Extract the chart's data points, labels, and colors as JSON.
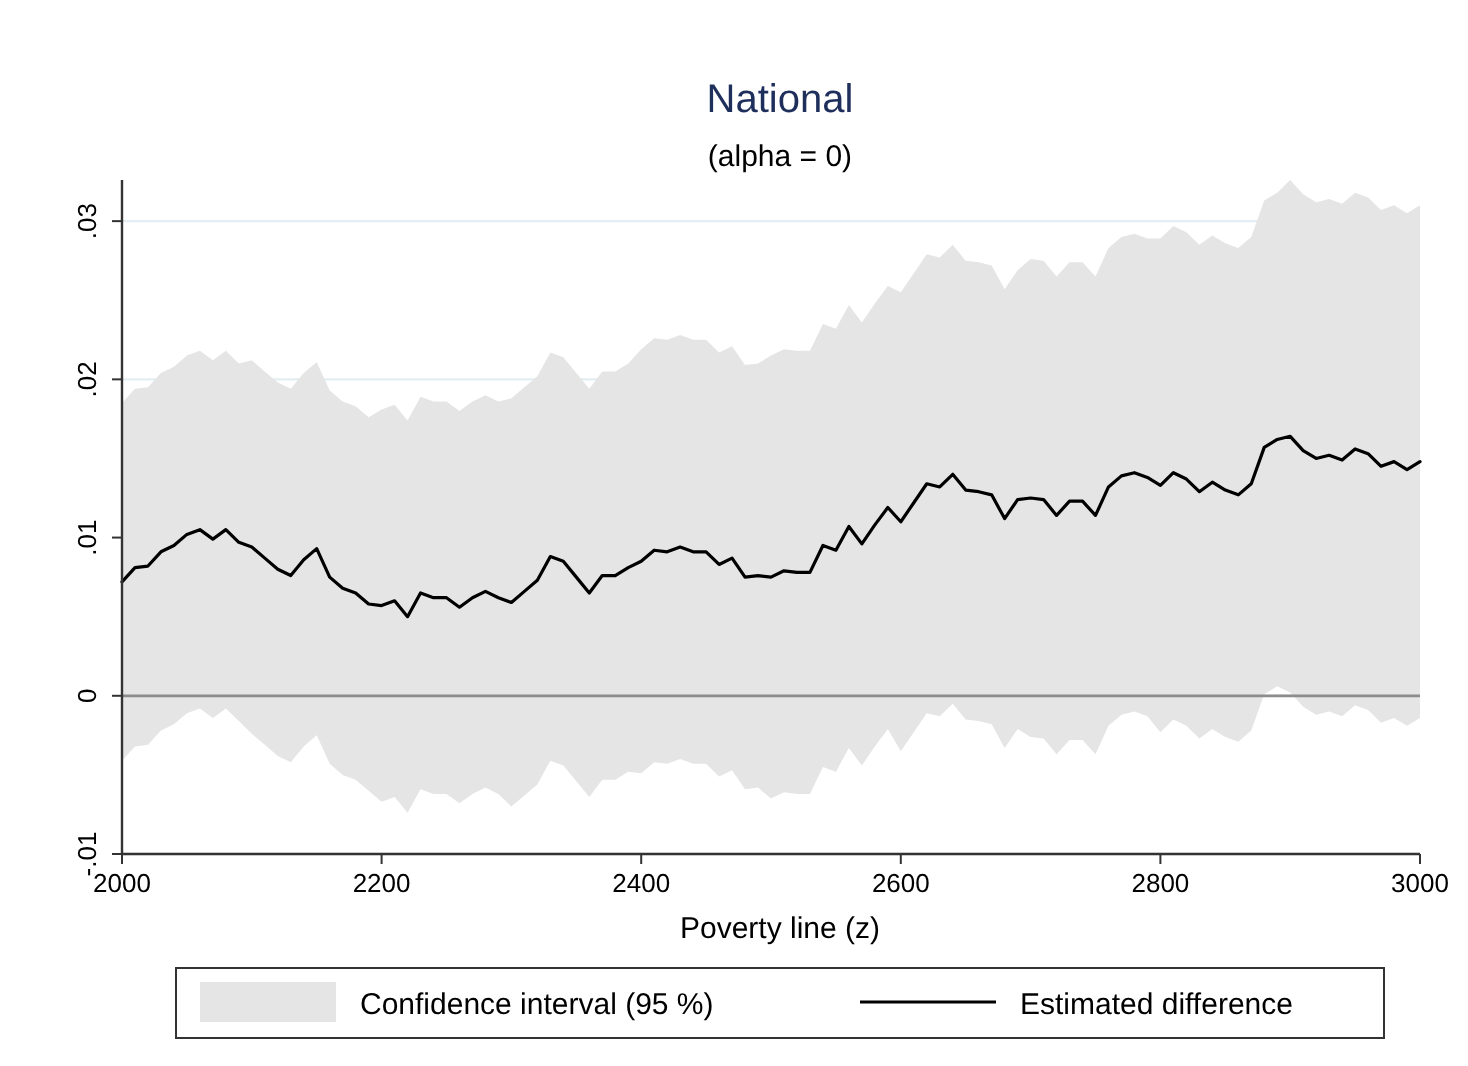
{
  "chart_data": {
    "type": "line",
    "title": "National",
    "subtitle": "(alpha = 0)",
    "xlabel": "Poverty line (z)",
    "annotations": [
      "Confidence interval (95 %)"
    ],
    "x": [
      2000,
      2010,
      2020,
      2030,
      2040,
      2050,
      2060,
      2070,
      2080,
      2090,
      2100,
      2110,
      2120,
      2130,
      2140,
      2150,
      2160,
      2170,
      2180,
      2190,
      2200,
      2210,
      2220,
      2230,
      2240,
      2250,
      2260,
      2270,
      2280,
      2290,
      2300,
      2310,
      2320,
      2330,
      2340,
      2350,
      2360,
      2370,
      2380,
      2390,
      2400,
      2410,
      2420,
      2430,
      2440,
      2450,
      2460,
      2470,
      2480,
      2490,
      2500,
      2510,
      2520,
      2530,
      2540,
      2550,
      2560,
      2570,
      2580,
      2590,
      2600,
      2610,
      2620,
      2630,
      2640,
      2650,
      2660,
      2670,
      2680,
      2690,
      2700,
      2710,
      2720,
      2730,
      2740,
      2750,
      2760,
      2770,
      2780,
      2790,
      2800,
      2810,
      2820,
      2830,
      2840,
      2850,
      2860,
      2870,
      2880,
      2890,
      2900,
      2910,
      2920,
      2930,
      2940,
      2950,
      2960,
      2970,
      2980,
      2990,
      3000
    ],
    "series": [
      {
        "name": "Estimated difference",
        "color": "#000000",
        "upper": [
          0.0185,
          0.0194,
          0.0195,
          0.0204,
          0.0208,
          0.0215,
          0.0218,
          0.0212,
          0.0218,
          0.021,
          0.0212,
          0.0205,
          0.0198,
          0.0194,
          0.0204,
          0.0211,
          0.0193,
          0.0186,
          0.0183,
          0.0176,
          0.0181,
          0.0184,
          0.0174,
          0.0189,
          0.0186,
          0.0186,
          0.018,
          0.0186,
          0.019,
          0.0186,
          0.0188,
          0.0195,
          0.0202,
          0.0217,
          0.0214,
          0.0204,
          0.0194,
          0.0205,
          0.0205,
          0.021,
          0.0219,
          0.0226,
          0.0225,
          0.0228,
          0.0225,
          0.0225,
          0.0217,
          0.0221,
          0.0209,
          0.021,
          0.0215,
          0.0219,
          0.0218,
          0.0218,
          0.0235,
          0.0232,
          0.0247,
          0.0236,
          0.0248,
          0.0259,
          0.0255,
          0.0267,
          0.0279,
          0.0277,
          0.0285,
          0.0275,
          0.0274,
          0.0272,
          0.0257,
          0.0269,
          0.0276,
          0.0275,
          0.0265,
          0.0274,
          0.0274,
          0.0265,
          0.0283,
          0.029,
          0.0292,
          0.0289,
          0.0289,
          0.0297,
          0.0293,
          0.0285,
          0.0291,
          0.0286,
          0.0283,
          0.029,
          0.0313,
          0.0318,
          0.0326,
          0.0317,
          0.0312,
          0.0314,
          0.0311,
          0.0318,
          0.0315,
          0.0307,
          0.031,
          0.0305,
          0.031
        ],
        "lower": [
          -0.0041,
          -0.0032,
          -0.0031,
          -0.0022,
          -0.0018,
          -0.0011,
          -0.0008,
          -0.0014,
          -0.0008,
          -0.0016,
          -0.0024,
          -0.0031,
          -0.0038,
          -0.0042,
          -0.0032,
          -0.0025,
          -0.0043,
          -0.005,
          -0.0053,
          -0.006,
          -0.0067,
          -0.0064,
          -0.0074,
          -0.0059,
          -0.0062,
          -0.0062,
          -0.0068,
          -0.0062,
          -0.0058,
          -0.0062,
          -0.007,
          -0.0063,
          -0.0056,
          -0.0041,
          -0.0044,
          -0.0054,
          -0.0064,
          -0.0053,
          -0.0053,
          -0.0048,
          -0.0049,
          -0.0042,
          -0.0043,
          -0.004,
          -0.0043,
          -0.0043,
          -0.0051,
          -0.0047,
          -0.0059,
          -0.0058,
          -0.0065,
          -0.0061,
          -0.0062,
          -0.0062,
          -0.0045,
          -0.0048,
          -0.0033,
          -0.0044,
          -0.0032,
          -0.0021,
          -0.0035,
          -0.0023,
          -0.0011,
          -0.0013,
          -0.0005,
          -0.0015,
          -0.0016,
          -0.0018,
          -0.0033,
          -0.0021,
          -0.0026,
          -0.0027,
          -0.0037,
          -0.0028,
          -0.0028,
          -0.0037,
          -0.0019,
          -0.0012,
          -0.001,
          -0.0013,
          -0.0023,
          -0.0015,
          -0.0019,
          -0.0027,
          -0.0021,
          -0.0026,
          -0.0029,
          -0.0022,
          0.0001,
          0.0006,
          0.0002,
          -0.0007,
          -0.0012,
          -0.001,
          -0.0013,
          -0.0006,
          -0.0009,
          -0.0017,
          -0.0014,
          -0.0019,
          -0.0014
        ],
        "values": [
          0.0072,
          0.0081,
          0.0082,
          0.0091,
          0.0095,
          0.0102,
          0.0105,
          0.0099,
          0.0105,
          0.0097,
          0.0094,
          0.0087,
          0.008,
          0.0076,
          0.0086,
          0.0093,
          0.0075,
          0.0068,
          0.0065,
          0.0058,
          0.0057,
          0.006,
          0.005,
          0.0065,
          0.0062,
          0.0062,
          0.0056,
          0.0062,
          0.0066,
          0.0062,
          0.0059,
          0.0066,
          0.0073,
          0.0088,
          0.0085,
          0.0075,
          0.0065,
          0.0076,
          0.0076,
          0.0081,
          0.0085,
          0.0092,
          0.0091,
          0.0094,
          0.0091,
          0.0091,
          0.0083,
          0.0087,
          0.0075,
          0.0076,
          0.0075,
          0.0079,
          0.0078,
          0.0078,
          0.0095,
          0.0092,
          0.0107,
          0.0096,
          0.0108,
          0.0119,
          0.011,
          0.0122,
          0.0134,
          0.0132,
          0.014,
          0.013,
          0.0129,
          0.0127,
          0.0112,
          0.0124,
          0.0125,
          0.0124,
          0.0114,
          0.0123,
          0.0123,
          0.0114,
          0.0132,
          0.0139,
          0.0141,
          0.0138,
          0.0133,
          0.0141,
          0.0137,
          0.0129,
          0.0135,
          0.013,
          0.0127,
          0.0134,
          0.0157,
          0.0162,
          0.0164,
          0.0155,
          0.015,
          0.0152,
          0.0149,
          0.0156,
          0.0153,
          0.0145,
          0.0148,
          0.0143,
          0.0148
        ]
      }
    ],
    "xlim": [
      2000,
      3000
    ],
    "xticks": [
      2000,
      2200,
      2400,
      2600,
      2800,
      3000
    ],
    "ylim": [
      -0.01,
      0.0326
    ],
    "yticks": [
      {
        "value": -0.01,
        "label": "-.01"
      },
      0,
      {
        "value": 0.01,
        "label": ".01"
      },
      {
        "value": 0.02,
        "label": ".02"
      },
      {
        "value": 0.03,
        "label": ".03"
      }
    ],
    "grid": "y",
    "ref_lines": [
      {
        "axis": "y",
        "value": 0,
        "color": "#8c8c8c"
      }
    ],
    "legend": "bottom",
    "marker": "none",
    "line_style": "solid"
  }
}
